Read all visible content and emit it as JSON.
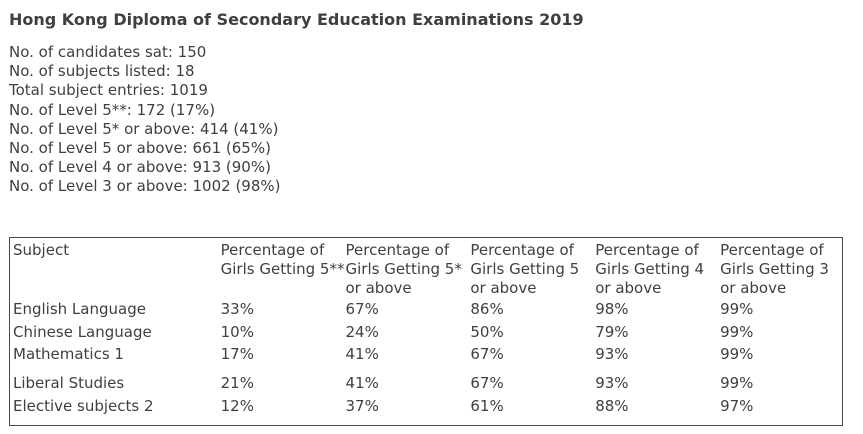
{
  "title": "Hong Kong Diploma of Secondary Education Examinations 2019",
  "stats": [
    "No. of candidates sat: 150",
    "No. of subjects listed: 18",
    "Total subject entries: 1019",
    "No. of Level 5**: 172 (17%)",
    "No. of Level 5* or above: 414 (41%)",
    "No. of Level 5 or above: 661 (65%)",
    "No. of Level 4 or above: 913 (90%)",
    "No. of Level 3 or above: 1002 (98%)"
  ],
  "table": {
    "headers": [
      "Subject",
      "Percentage of Girls Getting 5**",
      "Percentage of Girls Getting 5* or above",
      "Percentage of Girls Getting 5 or above",
      "Percentage of Girls Getting 4 or above",
      "Percentage of Girls Getting 3 or above"
    ],
    "rows": [
      [
        "English Language",
        "33%",
        "67%",
        "86%",
        "98%",
        "99%"
      ],
      [
        "Chinese Language",
        "10%",
        "24%",
        "50%",
        "79%",
        "99%"
      ],
      [
        "Mathematics 1",
        "17%",
        "41%",
        "67%",
        "93%",
        "99%"
      ],
      [
        "Liberal Studies",
        "21%",
        "41%",
        "67%",
        "93%",
        "99%"
      ],
      [
        "Elective subjects 2",
        "12%",
        "37%",
        "61%",
        "88%",
        "97%"
      ]
    ]
  }
}
